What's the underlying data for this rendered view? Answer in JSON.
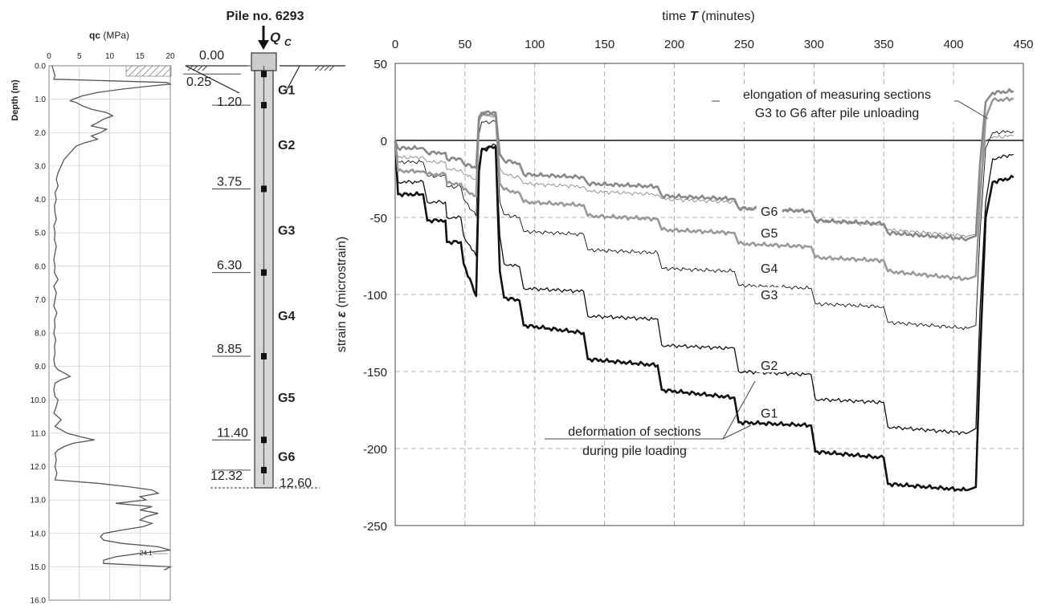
{
  "chart_data": [
    {
      "type": "line",
      "name": "cpt-profile",
      "xlabel_bold": "qc",
      "xlabel_unit": "(MPa)",
      "ylabel": "Depth (m)",
      "xlim": [
        0,
        20
      ],
      "ylim": [
        0,
        16
      ],
      "x_ticks": [
        "0",
        "5",
        "10",
        "15",
        "20"
      ],
      "y_ticks": [
        "0.0",
        "1.0",
        "2.0",
        "3.0",
        "4.0",
        "5.0",
        "6.0",
        "7.0",
        "8.0",
        "9.0",
        "10.0",
        "11.0",
        "12.0",
        "13.0",
        "14.0",
        "15.0",
        "16.0"
      ],
      "annotation": "24.1",
      "depth": [
        0.0,
        0.3,
        0.4,
        0.5,
        0.55,
        0.6,
        0.7,
        0.8,
        0.9,
        1.0,
        1.05,
        1.1,
        1.2,
        1.3,
        1.4,
        1.5,
        1.6,
        1.7,
        1.8,
        1.9,
        2.0,
        2.1,
        2.2,
        2.3,
        2.4,
        2.5,
        2.6,
        2.8,
        3.0,
        3.2,
        3.4,
        3.6,
        3.8,
        4.0,
        4.2,
        4.4,
        4.6,
        4.8,
        5.0,
        5.2,
        5.4,
        5.6,
        5.8,
        6.0,
        6.2,
        6.4,
        6.6,
        6.8,
        7.0,
        7.2,
        7.4,
        7.6,
        7.8,
        8.0,
        8.2,
        8.4,
        8.6,
        8.8,
        9.0,
        9.1,
        9.2,
        9.3,
        9.4,
        9.5,
        9.7,
        9.9,
        10.0,
        10.2,
        10.4,
        10.6,
        10.8,
        11.0,
        11.1,
        11.2,
        11.3,
        11.4,
        11.5,
        11.6,
        11.8,
        12.0,
        12.2,
        12.4,
        12.5,
        12.6,
        12.7,
        12.8,
        12.9,
        13.0,
        13.1,
        13.2,
        13.3,
        13.4,
        13.5,
        13.6,
        13.7,
        13.8,
        13.9,
        14.0,
        14.1,
        14.2,
        14.3,
        14.4,
        14.5,
        14.6,
        14.7,
        14.8,
        14.9,
        15.0,
        15.1
      ],
      "qc": [
        0.5,
        1.0,
        0.8,
        19.5,
        20.0,
        17.0,
        12.0,
        8.0,
        5.5,
        4.0,
        3.5,
        4.5,
        5.5,
        7.0,
        9.5,
        10.5,
        9.0,
        8.0,
        7.0,
        9.5,
        8.5,
        7.0,
        8.0,
        6.0,
        4.5,
        4.0,
        3.5,
        2.5,
        2.0,
        1.5,
        1.2,
        1.5,
        1.0,
        1.2,
        0.9,
        1.0,
        1.2,
        0.8,
        1.0,
        0.9,
        1.2,
        1.0,
        0.8,
        1.0,
        0.9,
        1.5,
        0.8,
        1.2,
        1.0,
        0.8,
        1.3,
        0.9,
        1.0,
        0.8,
        1.1,
        0.9,
        1.0,
        0.8,
        1.0,
        1.5,
        2.5,
        3.5,
        2.0,
        1.0,
        0.8,
        1.0,
        1.5,
        1.2,
        0.8,
        2.0,
        1.0,
        3.0,
        5.0,
        7.5,
        4.0,
        2.5,
        1.5,
        1.0,
        1.2,
        1.0,
        1.3,
        1.0,
        8.0,
        13.0,
        17.0,
        18.0,
        15.0,
        16.0,
        11.0,
        17.0,
        15.0,
        18.0,
        16.0,
        15.0,
        17.0,
        15.5,
        12.0,
        9.0,
        8.5,
        9.0,
        12.0,
        18.0,
        20.0,
        15.0,
        11.0,
        9.0,
        9.0,
        20.0,
        19.0
      ]
    },
    {
      "type": "diagram",
      "name": "pile-schematic",
      "title": "Pile no. 6293",
      "load_symbol": "Q",
      "load_subscript": "C",
      "levels": [
        {
          "label": "0.00",
          "depth": 0.0
        },
        {
          "label": "0.25",
          "depth": 0.25
        },
        {
          "label": "1.20",
          "depth": 1.2
        },
        {
          "label": "3.75",
          "depth": 3.75
        },
        {
          "label": "6.30",
          "depth": 6.3
        },
        {
          "label": "8.85",
          "depth": 8.85
        },
        {
          "label": "11.40",
          "depth": 11.4
        },
        {
          "label": "12.32",
          "depth": 12.32
        },
        {
          "label": "12.60",
          "depth": 12.6
        }
      ],
      "gauges": [
        0.25,
        1.2,
        3.75,
        6.3,
        8.85,
        11.4,
        12.32
      ],
      "sections": [
        {
          "label": "G1",
          "depth": 0.72
        },
        {
          "label": "G2",
          "depth": 2.4
        },
        {
          "label": "G3",
          "depth": 5.0
        },
        {
          "label": "G4",
          "depth": 7.6
        },
        {
          "label": "G5",
          "depth": 10.1
        },
        {
          "label": "G6",
          "depth": 11.9
        }
      ]
    },
    {
      "type": "line",
      "name": "strain-time",
      "xlabel_pre": "time",
      "xlabel_sym": "T",
      "xlabel_post": "(minutes)",
      "ylabel_pre": "strain",
      "ylabel_sym": "ε",
      "ylabel_post": "(microstrain)",
      "xlim": [
        0,
        450
      ],
      "ylim": [
        -250,
        50
      ],
      "x_ticks": [
        0,
        50,
        100,
        150,
        200,
        250,
        300,
        350,
        400,
        450
      ],
      "y_ticks": [
        50,
        0,
        -50,
        -100,
        -150,
        -200,
        -250
      ],
      "grid": true,
      "annotations": [
        {
          "lines": [
            "elongation of measuring sections",
            "G3 to G6 after pile unloading"
          ]
        },
        {
          "lines": [
            "deformation of sections",
            "during pile loading"
          ]
        }
      ],
      "series": [
        {
          "name": "G1",
          "color": "#111111",
          "width": 2.6,
          "label_at": [
            268,
            -179
          ],
          "points": [
            [
              0,
              0
            ],
            [
              2,
              -35
            ],
            [
              20,
              -35
            ],
            [
              23,
              -52
            ],
            [
              36,
              -52
            ],
            [
              37,
              -66
            ],
            [
              47,
              -66
            ],
            [
              49,
              -80
            ],
            [
              58,
              -101
            ],
            [
              60,
              -20
            ],
            [
              62,
              -6
            ],
            [
              72,
              -4
            ],
            [
              75,
              -85
            ],
            [
              78,
              -102
            ],
            [
              89,
              -104
            ],
            [
              92,
              -120
            ],
            [
              135,
              -125
            ],
            [
              138,
              -142
            ],
            [
              188,
              -146
            ],
            [
              191,
              -162
            ],
            [
              243,
              -167
            ],
            [
              246,
              -183
            ],
            [
              298,
              -185
            ],
            [
              301,
              -202
            ],
            [
              350,
              -206
            ],
            [
              353,
              -223
            ],
            [
              410,
              -227
            ],
            [
              416,
              -225
            ],
            [
              419,
              -140
            ],
            [
              423,
              -50
            ],
            [
              428,
              -27
            ],
            [
              443,
              -24
            ]
          ]
        },
        {
          "name": "G2",
          "color": "#111111",
          "width": 1.3,
          "label_at": [
            268,
            -148
          ],
          "points": [
            [
              0,
              0
            ],
            [
              2,
              -27
            ],
            [
              20,
              -27
            ],
            [
              23,
              -40
            ],
            [
              36,
              -40
            ],
            [
              37,
              -50
            ],
            [
              47,
              -50
            ],
            [
              49,
              -62
            ],
            [
              58,
              -75
            ],
            [
              60,
              -16
            ],
            [
              62,
              -5
            ],
            [
              72,
              -3
            ],
            [
              75,
              -62
            ],
            [
              78,
              -80
            ],
            [
              89,
              -82
            ],
            [
              92,
              -96
            ],
            [
              135,
              -98
            ],
            [
              138,
              -114
            ],
            [
              188,
              -116
            ],
            [
              191,
              -133
            ],
            [
              243,
              -135
            ],
            [
              246,
              -150
            ],
            [
              298,
              -152
            ],
            [
              301,
              -168
            ],
            [
              350,
              -170
            ],
            [
              353,
              -186
            ],
            [
              410,
              -190
            ],
            [
              416,
              -187
            ],
            [
              419,
              -110
            ],
            [
              423,
              -40
            ],
            [
              428,
              -12
            ],
            [
              443,
              -9
            ]
          ]
        },
        {
          "name": "G3",
          "color": "#111111",
          "width": 0.9,
          "label_at": [
            268,
            -102
          ],
          "points": [
            [
              0,
              0
            ],
            [
              2,
              -14
            ],
            [
              20,
              -14
            ],
            [
              23,
              -23
            ],
            [
              36,
              -23
            ],
            [
              37,
              -30
            ],
            [
              47,
              -30
            ],
            [
              49,
              -38
            ],
            [
              58,
              -49
            ],
            [
              60,
              4
            ],
            [
              62,
              12
            ],
            [
              72,
              12
            ],
            [
              75,
              -40
            ],
            [
              78,
              -48
            ],
            [
              89,
              -50
            ],
            [
              92,
              -59
            ],
            [
              135,
              -61
            ],
            [
              138,
              -71
            ],
            [
              188,
              -73
            ],
            [
              191,
              -83
            ],
            [
              243,
              -85
            ],
            [
              246,
              -94
            ],
            [
              298,
              -96
            ],
            [
              301,
              -106
            ],
            [
              350,
              -108
            ],
            [
              353,
              -118
            ],
            [
              410,
              -122
            ],
            [
              416,
              -120
            ],
            [
              419,
              -60
            ],
            [
              423,
              -5
            ],
            [
              428,
              5
            ],
            [
              443,
              6
            ]
          ]
        },
        {
          "name": "G4",
          "color": "#999999",
          "width": 2.6,
          "label_at": [
            268,
            -85
          ],
          "points": [
            [
              0,
              0
            ],
            [
              2,
              -20
            ],
            [
              20,
              -20
            ],
            [
              23,
              -22
            ],
            [
              36,
              -22
            ],
            [
              37,
              -28
            ],
            [
              47,
              -28
            ],
            [
              49,
              -32
            ],
            [
              58,
              -36
            ],
            [
              60,
              14
            ],
            [
              62,
              17
            ],
            [
              72,
              17
            ],
            [
              75,
              -28
            ],
            [
              78,
              -32
            ],
            [
              89,
              -34
            ],
            [
              92,
              -40
            ],
            [
              135,
              -42
            ],
            [
              138,
              -49
            ],
            [
              188,
              -51
            ],
            [
              191,
              -58
            ],
            [
              243,
              -60
            ],
            [
              246,
              -67
            ],
            [
              298,
              -69
            ],
            [
              301,
              -76
            ],
            [
              350,
              -78
            ],
            [
              353,
              -85
            ],
            [
              410,
              -90
            ],
            [
              416,
              -88
            ],
            [
              419,
              -40
            ],
            [
              423,
              15
            ],
            [
              428,
              26
            ],
            [
              443,
              27
            ]
          ]
        },
        {
          "name": "G5",
          "color": "#888888",
          "width": 0.9,
          "label_at": [
            268,
            -62
          ],
          "points": [
            [
              0,
              0
            ],
            [
              2,
              -11
            ],
            [
              20,
              -11
            ],
            [
              23,
              -14
            ],
            [
              36,
              -14
            ],
            [
              37,
              -19
            ],
            [
              47,
              -19
            ],
            [
              49,
              -22
            ],
            [
              58,
              -25
            ],
            [
              60,
              12
            ],
            [
              62,
              16
            ],
            [
              72,
              16
            ],
            [
              75,
              -18
            ],
            [
              78,
              -22
            ],
            [
              89,
              -24
            ],
            [
              92,
              -28
            ],
            [
              135,
              -30
            ],
            [
              138,
              -33
            ],
            [
              188,
              -35
            ],
            [
              191,
              -38
            ],
            [
              243,
              -40
            ],
            [
              246,
              -44
            ],
            [
              298,
              -46
            ],
            [
              301,
              -52
            ],
            [
              350,
              -55
            ],
            [
              353,
              -58
            ],
            [
              410,
              -62
            ],
            [
              416,
              -61
            ],
            [
              419,
              -30
            ],
            [
              423,
              0
            ],
            [
              428,
              2
            ],
            [
              443,
              3
            ]
          ]
        },
        {
          "name": "G6",
          "color": "#888888",
          "width": 2.6,
          "label_at": [
            268,
            -48
          ],
          "points": [
            [
              0,
              0
            ],
            [
              2,
              -5
            ],
            [
              20,
              -5
            ],
            [
              23,
              -8
            ],
            [
              36,
              -8
            ],
            [
              37,
              -12
            ],
            [
              47,
              -12
            ],
            [
              49,
              -15
            ],
            [
              58,
              -18
            ],
            [
              60,
              15
            ],
            [
              62,
              18
            ],
            [
              72,
              18
            ],
            [
              75,
              -9
            ],
            [
              78,
              -13
            ],
            [
              89,
              -15
            ],
            [
              92,
              -22
            ],
            [
              135,
              -24
            ],
            [
              138,
              -28
            ],
            [
              188,
              -30
            ],
            [
              191,
              -36
            ],
            [
              243,
              -38
            ],
            [
              246,
              -44
            ],
            [
              298,
              -46
            ],
            [
              301,
              -52
            ],
            [
              350,
              -54
            ],
            [
              353,
              -60
            ],
            [
              410,
              -64
            ],
            [
              416,
              -62
            ],
            [
              419,
              -15
            ],
            [
              423,
              25
            ],
            [
              428,
              31
            ],
            [
              443,
              32
            ]
          ]
        }
      ]
    }
  ]
}
